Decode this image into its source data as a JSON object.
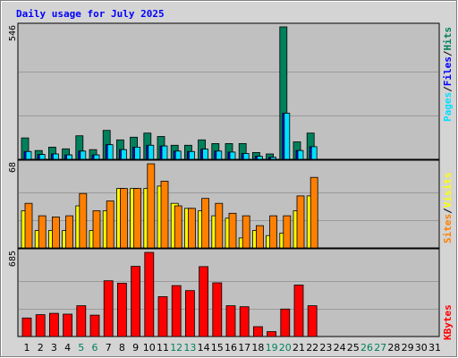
{
  "title": "Daily usage for July 2025",
  "colors": {
    "hits": "#00805c",
    "files": "#0000ff",
    "pages": "#00e0ff",
    "visits": "#ffff00",
    "sites": "#ff8000",
    "kbytes": "#ff0000",
    "title": "#0000ff",
    "weekend_tick": "#00805c",
    "weekday_tick": "#000000",
    "plot_bg": "#c0c0c0",
    "frame_bg": "#d4d4d4"
  },
  "weekend_days": [
    5,
    6,
    12,
    13,
    19,
    20,
    26,
    27
  ],
  "side_labels": {
    "panel1": [
      "Pages",
      "Files",
      "Hits"
    ],
    "panel2": [
      "Sites",
      "Visits"
    ],
    "panel3": [
      "KBytes"
    ],
    "separator": "/"
  },
  "chart_data": [
    {
      "type": "bar",
      "panel": "hits-files-pages",
      "categories": [
        "1",
        "2",
        "3",
        "4",
        "5",
        "6",
        "7",
        "8",
        "9",
        "10",
        "11",
        "12",
        "13",
        "14",
        "15",
        "16",
        "17",
        "18",
        "19",
        "20",
        "21",
        "22",
        "23",
        "24",
        "25",
        "26",
        "27",
        "28",
        "29",
        "30",
        "31"
      ],
      "ymax_label": "546",
      "ylim": [
        0,
        546
      ],
      "series": [
        {
          "name": "Hits",
          "color_key": "hits",
          "values": [
            88,
            36,
            50,
            43,
            97,
            40,
            119,
            80,
            91,
            108,
            94,
            58,
            58,
            80,
            65,
            65,
            65,
            28,
            22,
            546,
            72,
            108,
            0,
            0,
            0,
            0,
            0,
            0,
            0,
            0,
            0
          ]
        },
        {
          "name": "Files",
          "color_key": "files",
          "values": [
            32,
            20,
            22,
            18,
            34,
            18,
            60,
            40,
            50,
            58,
            55,
            34,
            32,
            42,
            34,
            30,
            24,
            12,
            8,
            190,
            36,
            52,
            0,
            0,
            0,
            0,
            0,
            0,
            0,
            0,
            0
          ]
        },
        {
          "name": "Pages",
          "color_key": "pages",
          "values": [
            32,
            20,
            22,
            18,
            34,
            18,
            60,
            40,
            50,
            58,
            55,
            34,
            32,
            42,
            34,
            30,
            24,
            12,
            8,
            190,
            36,
            52,
            0,
            0,
            0,
            0,
            0,
            0,
            0,
            0,
            0
          ]
        }
      ]
    },
    {
      "type": "bar",
      "panel": "visits-sites",
      "categories": [
        "1",
        "2",
        "3",
        "4",
        "5",
        "6",
        "7",
        "8",
        "9",
        "10",
        "11",
        "12",
        "13",
        "14",
        "15",
        "16",
        "17",
        "18",
        "19",
        "20",
        "21",
        "22",
        "23",
        "24",
        "25",
        "26",
        "27",
        "28",
        "29",
        "30",
        "31"
      ],
      "ymax_label": "68",
      "ylim": [
        0,
        68
      ],
      "series": [
        {
          "name": "Visits",
          "color_key": "visits",
          "values": [
            30,
            14,
            14,
            14,
            34,
            14,
            30,
            48,
            48,
            48,
            50,
            36,
            32,
            30,
            26,
            24,
            8,
            14,
            10,
            12,
            30,
            42,
            0,
            0,
            0,
            0,
            0,
            0,
            0,
            0,
            0
          ]
        },
        {
          "name": "Sites",
          "color_key": "sites",
          "values": [
            36,
            26,
            25,
            26,
            44,
            30,
            38,
            48,
            48,
            68,
            54,
            34,
            32,
            40,
            36,
            28,
            26,
            18,
            26,
            26,
            42,
            57,
            0,
            0,
            0,
            0,
            0,
            0,
            0,
            0,
            0
          ]
        }
      ]
    },
    {
      "type": "bar",
      "panel": "kbytes",
      "categories": [
        "1",
        "2",
        "3",
        "4",
        "5",
        "6",
        "7",
        "8",
        "9",
        "10",
        "11",
        "12",
        "13",
        "14",
        "15",
        "16",
        "17",
        "18",
        "19",
        "20",
        "21",
        "22",
        "23",
        "24",
        "25",
        "26",
        "27",
        "28",
        "29",
        "30",
        "31"
      ],
      "ymax_label": "685",
      "ylim": [
        0,
        685
      ],
      "series": [
        {
          "name": "KBytes",
          "color_key": "kbytes",
          "values": [
            151,
            178,
            189,
            182,
            251,
            174,
            454,
            434,
            571,
            685,
            324,
            415,
            374,
            569,
            437,
            251,
            243,
            80,
            40,
            224,
            419,
            251,
            0,
            0,
            0,
            0,
            0,
            0,
            0,
            0,
            0
          ]
        }
      ]
    }
  ]
}
